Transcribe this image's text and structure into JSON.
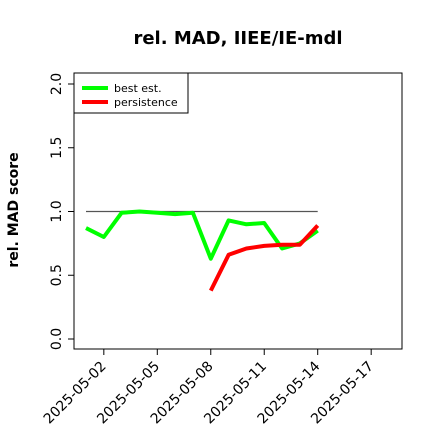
{
  "chart_data": {
    "type": "line",
    "title": "rel. MAD, IIEE/IE-mdl",
    "xlabel": "",
    "ylabel": "rel. MAD score",
    "ylim": [
      0.0,
      2.0
    ],
    "yticks": [
      "0.0",
      "0.5",
      "1.0",
      "1.5",
      "2.0"
    ],
    "xlim": [
      "2025-05-01",
      "2025-05-18"
    ],
    "xticks": [
      "2025-05-02",
      "2025-05-05",
      "2025-05-08",
      "2025-05-11",
      "2025-05-14",
      "2025-05-17"
    ],
    "reference_line": {
      "y": 1.0,
      "x_start": "2025-05-01",
      "x_end": "2025-05-14",
      "color": "#555555"
    },
    "legend_position": "top-left",
    "grid": false,
    "series": [
      {
        "name": "best est.",
        "color": "#00ff00",
        "x": [
          "2025-05-01",
          "2025-05-02",
          "2025-05-03",
          "2025-05-04",
          "2025-05-05",
          "2025-05-06",
          "2025-05-07",
          "2025-05-08",
          "2025-05-09",
          "2025-05-10",
          "2025-05-11",
          "2025-05-12",
          "2025-05-13",
          "2025-05-14"
        ],
        "y": [
          0.87,
          0.8,
          0.99,
          1.0,
          0.99,
          0.98,
          0.99,
          0.63,
          0.93,
          0.9,
          0.91,
          0.71,
          0.75,
          0.85
        ]
      },
      {
        "name": "persistence",
        "color": "#ff0000",
        "x": [
          "2025-05-08",
          "2025-05-09",
          "2025-05-10",
          "2025-05-11",
          "2025-05-12",
          "2025-05-13",
          "2025-05-14"
        ],
        "y": [
          0.38,
          0.66,
          0.71,
          0.73,
          0.74,
          0.74,
          0.89
        ]
      }
    ]
  }
}
